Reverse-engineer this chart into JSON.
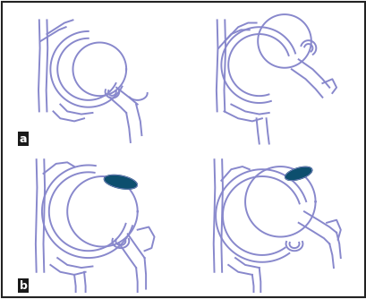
{
  "bg_color": "#ffffff",
  "border_color": "#222222",
  "line_color": "#8888cc",
  "imp_color": "#0d4f6e",
  "label_a": "a",
  "label_b": "b",
  "label_fontsize": 9,
  "label_bg": "#1a1a1a",
  "label_fg": "#ffffff",
  "fig_width": 4.1,
  "fig_height": 3.34,
  "dpi": 100,
  "lw": 1.4
}
